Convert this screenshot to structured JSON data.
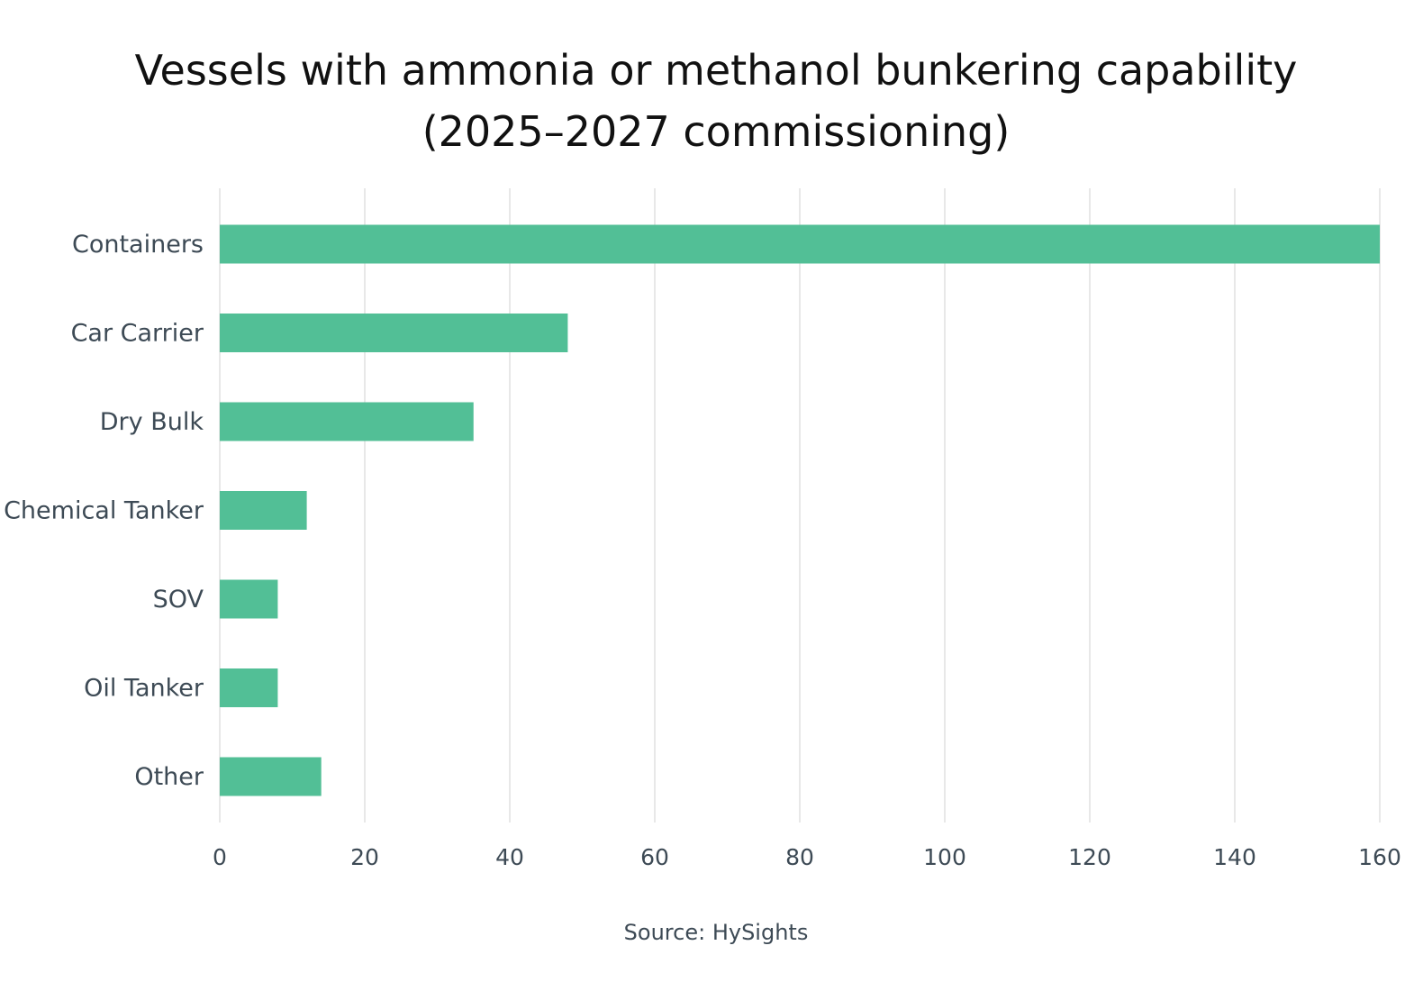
{
  "chart_data": {
    "type": "bar",
    "orientation": "horizontal",
    "title_lines": [
      "Vessels with ammonia or methanol bunkering capability",
      "(2025–2027 commissioning)"
    ],
    "categories": [
      "Containers",
      "Car Carrier",
      "Dry Bulk",
      "Chemical Tanker",
      "SOV",
      "Oil Tanker",
      "Other"
    ],
    "values": [
      160,
      48,
      35,
      12,
      8,
      8,
      14
    ],
    "xlim": [
      0,
      160
    ],
    "xticks": [
      0,
      20,
      40,
      60,
      80,
      100,
      120,
      140,
      160
    ],
    "grid": "vertical",
    "bar_color": "#52bf96",
    "grid_color": "#e1e1e1",
    "source": "Source: HySights"
  }
}
